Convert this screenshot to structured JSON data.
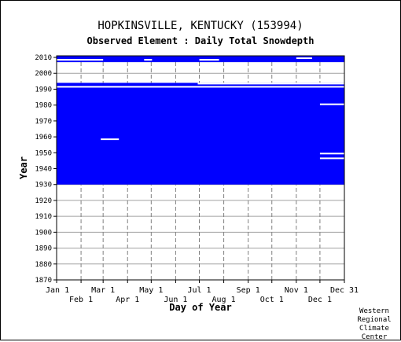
{
  "page": {
    "title": "HOPKINSVILLE, KENTUCKY   (153994)",
    "subtitle": "Observed Element : Daily Total Snowdepth",
    "credit": "Western\nRegional\nClimate\nCenter"
  },
  "chart_data": {
    "type": "heatmap",
    "title": "HOPKINSVILLE, KENTUCKY   (153994)",
    "subtitle": "Observed Element : Daily Total Snowdepth",
    "xlabel": "Day of Year",
    "ylabel": "Year",
    "xlim": [
      1,
      366
    ],
    "ylim": [
      1870,
      2011
    ],
    "y_ticks": [
      1870,
      1880,
      1890,
      1900,
      1910,
      1920,
      1930,
      1940,
      1950,
      1960,
      1970,
      1980,
      1990,
      2000,
      2010
    ],
    "x_ticks_upper": [
      {
        "label": "Jan 1",
        "day": 1
      },
      {
        "label": "Mar 1",
        "day": 60
      },
      {
        "label": "May 1",
        "day": 121
      },
      {
        "label": "Jul 1",
        "day": 182
      },
      {
        "label": "Sep 1",
        "day": 244
      },
      {
        "label": "Nov 1",
        "day": 305
      },
      {
        "label": "Dec 31",
        "day": 366
      }
    ],
    "x_ticks_lower": [
      {
        "label": "Feb 1",
        "day": 32
      },
      {
        "label": "Apr 1",
        "day": 91
      },
      {
        "label": "Jun 1",
        "day": 152
      },
      {
        "label": "Aug 1",
        "day": 213
      },
      {
        "label": "Oct 1",
        "day": 274
      },
      {
        "label": "Dec 1",
        "day": 335
      }
    ],
    "grid": true,
    "data_color": "#0000ff",
    "data_present": [
      {
        "years": [
          1930,
          1994
        ],
        "days": [
          1,
          366
        ]
      },
      {
        "years": [
          2007,
          2011
        ],
        "days": [
          1,
          366
        ]
      }
    ],
    "data_gaps": [
      {
        "years": [
          1991,
          1992
        ],
        "days": [
          1,
          366
        ]
      },
      {
        "years": [
          1993,
          1994
        ],
        "days": [
          180,
          366
        ]
      },
      {
        "years": [
          1958,
          1959
        ],
        "days": [
          57,
          80
        ]
      },
      {
        "years": [
          1980,
          1981
        ],
        "days": [
          335,
          366
        ]
      },
      {
        "years": [
          1946,
          1947
        ],
        "days": [
          335,
          366
        ]
      },
      {
        "years": [
          1949,
          1950
        ],
        "days": [
          335,
          366
        ]
      },
      {
        "years": [
          2009,
          2010
        ],
        "days": [
          305,
          325
        ]
      },
      {
        "years": [
          2008,
          2009
        ],
        "days": [
          1,
          60
        ]
      },
      {
        "years": [
          2008,
          2009
        ],
        "days": [
          112,
          122
        ]
      },
      {
        "years": [
          2008,
          2009
        ],
        "days": [
          182,
          207
        ]
      }
    ]
  }
}
